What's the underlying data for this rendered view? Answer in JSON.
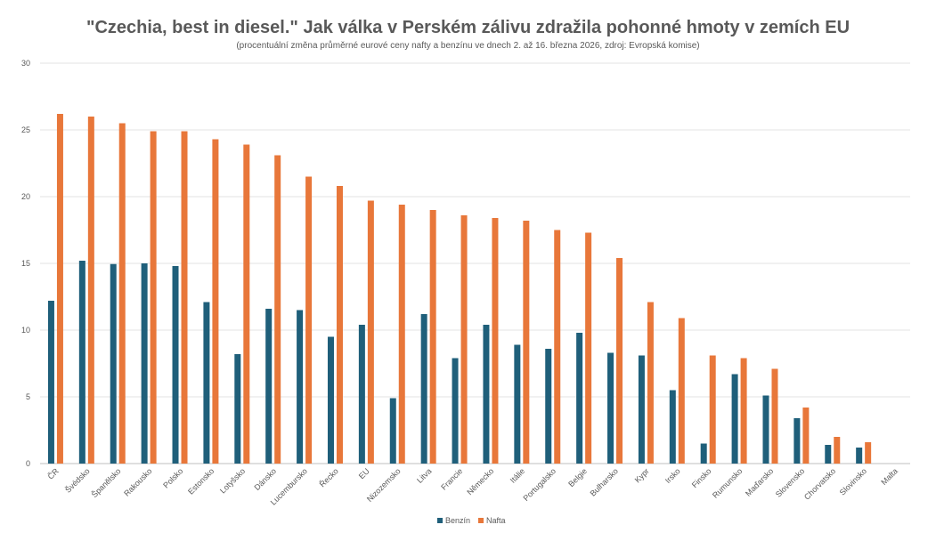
{
  "chart_data": {
    "type": "bar",
    "title": "\"Czechia, best in diesel.\" Jak válka v Perském zálivu zdražila pohonné hmoty v zemích EU",
    "subtitle": "(procentuální změna průměrné eurové ceny nafty a benzínu ve dnech 2. až 16. března 2026, zdroj: Evropská komise)",
    "categories": [
      "ČR",
      "Švédsko",
      "Španělsko",
      "Rakousko",
      "Polsko",
      "Estonsko",
      "Lotyšsko",
      "Dánsko",
      "Lucembursko",
      "Řecko",
      "EU",
      "Nizozemsko",
      "Litva",
      "Francie",
      "Německo",
      "Itálie",
      "Portugalsko",
      "Belgie",
      "Bulharsko",
      "Kypr",
      "Irsko",
      "Finsko",
      "Rumunsko",
      "Maďarsko",
      "Slovensko",
      "Chorvatsko",
      "Slovinsko",
      "Malta"
    ],
    "series": [
      {
        "name": "Benzín",
        "color": "#1f5f7a",
        "values": [
          12.2,
          15.2,
          14.95,
          15.0,
          14.8,
          12.1,
          8.2,
          11.6,
          11.5,
          9.5,
          10.4,
          4.9,
          11.2,
          7.9,
          10.4,
          8.9,
          8.6,
          9.8,
          8.3,
          8.1,
          5.5,
          1.5,
          6.7,
          5.1,
          3.4,
          1.4,
          1.2,
          0
        ]
      },
      {
        "name": "Nafta",
        "color": "#e8773a",
        "values": [
          26.2,
          26.0,
          25.5,
          24.9,
          24.9,
          24.3,
          23.9,
          23.1,
          21.5,
          20.8,
          19.7,
          19.4,
          19.0,
          18.6,
          18.4,
          18.2,
          17.5,
          17.3,
          15.4,
          12.1,
          10.9,
          8.1,
          7.9,
          7.1,
          4.2,
          2.0,
          1.6,
          0
        ]
      }
    ],
    "ylim": [
      0,
      30
    ],
    "yticks": [
      0,
      5,
      10,
      15,
      20,
      25,
      30
    ],
    "grid": true,
    "legend": "bottom"
  }
}
